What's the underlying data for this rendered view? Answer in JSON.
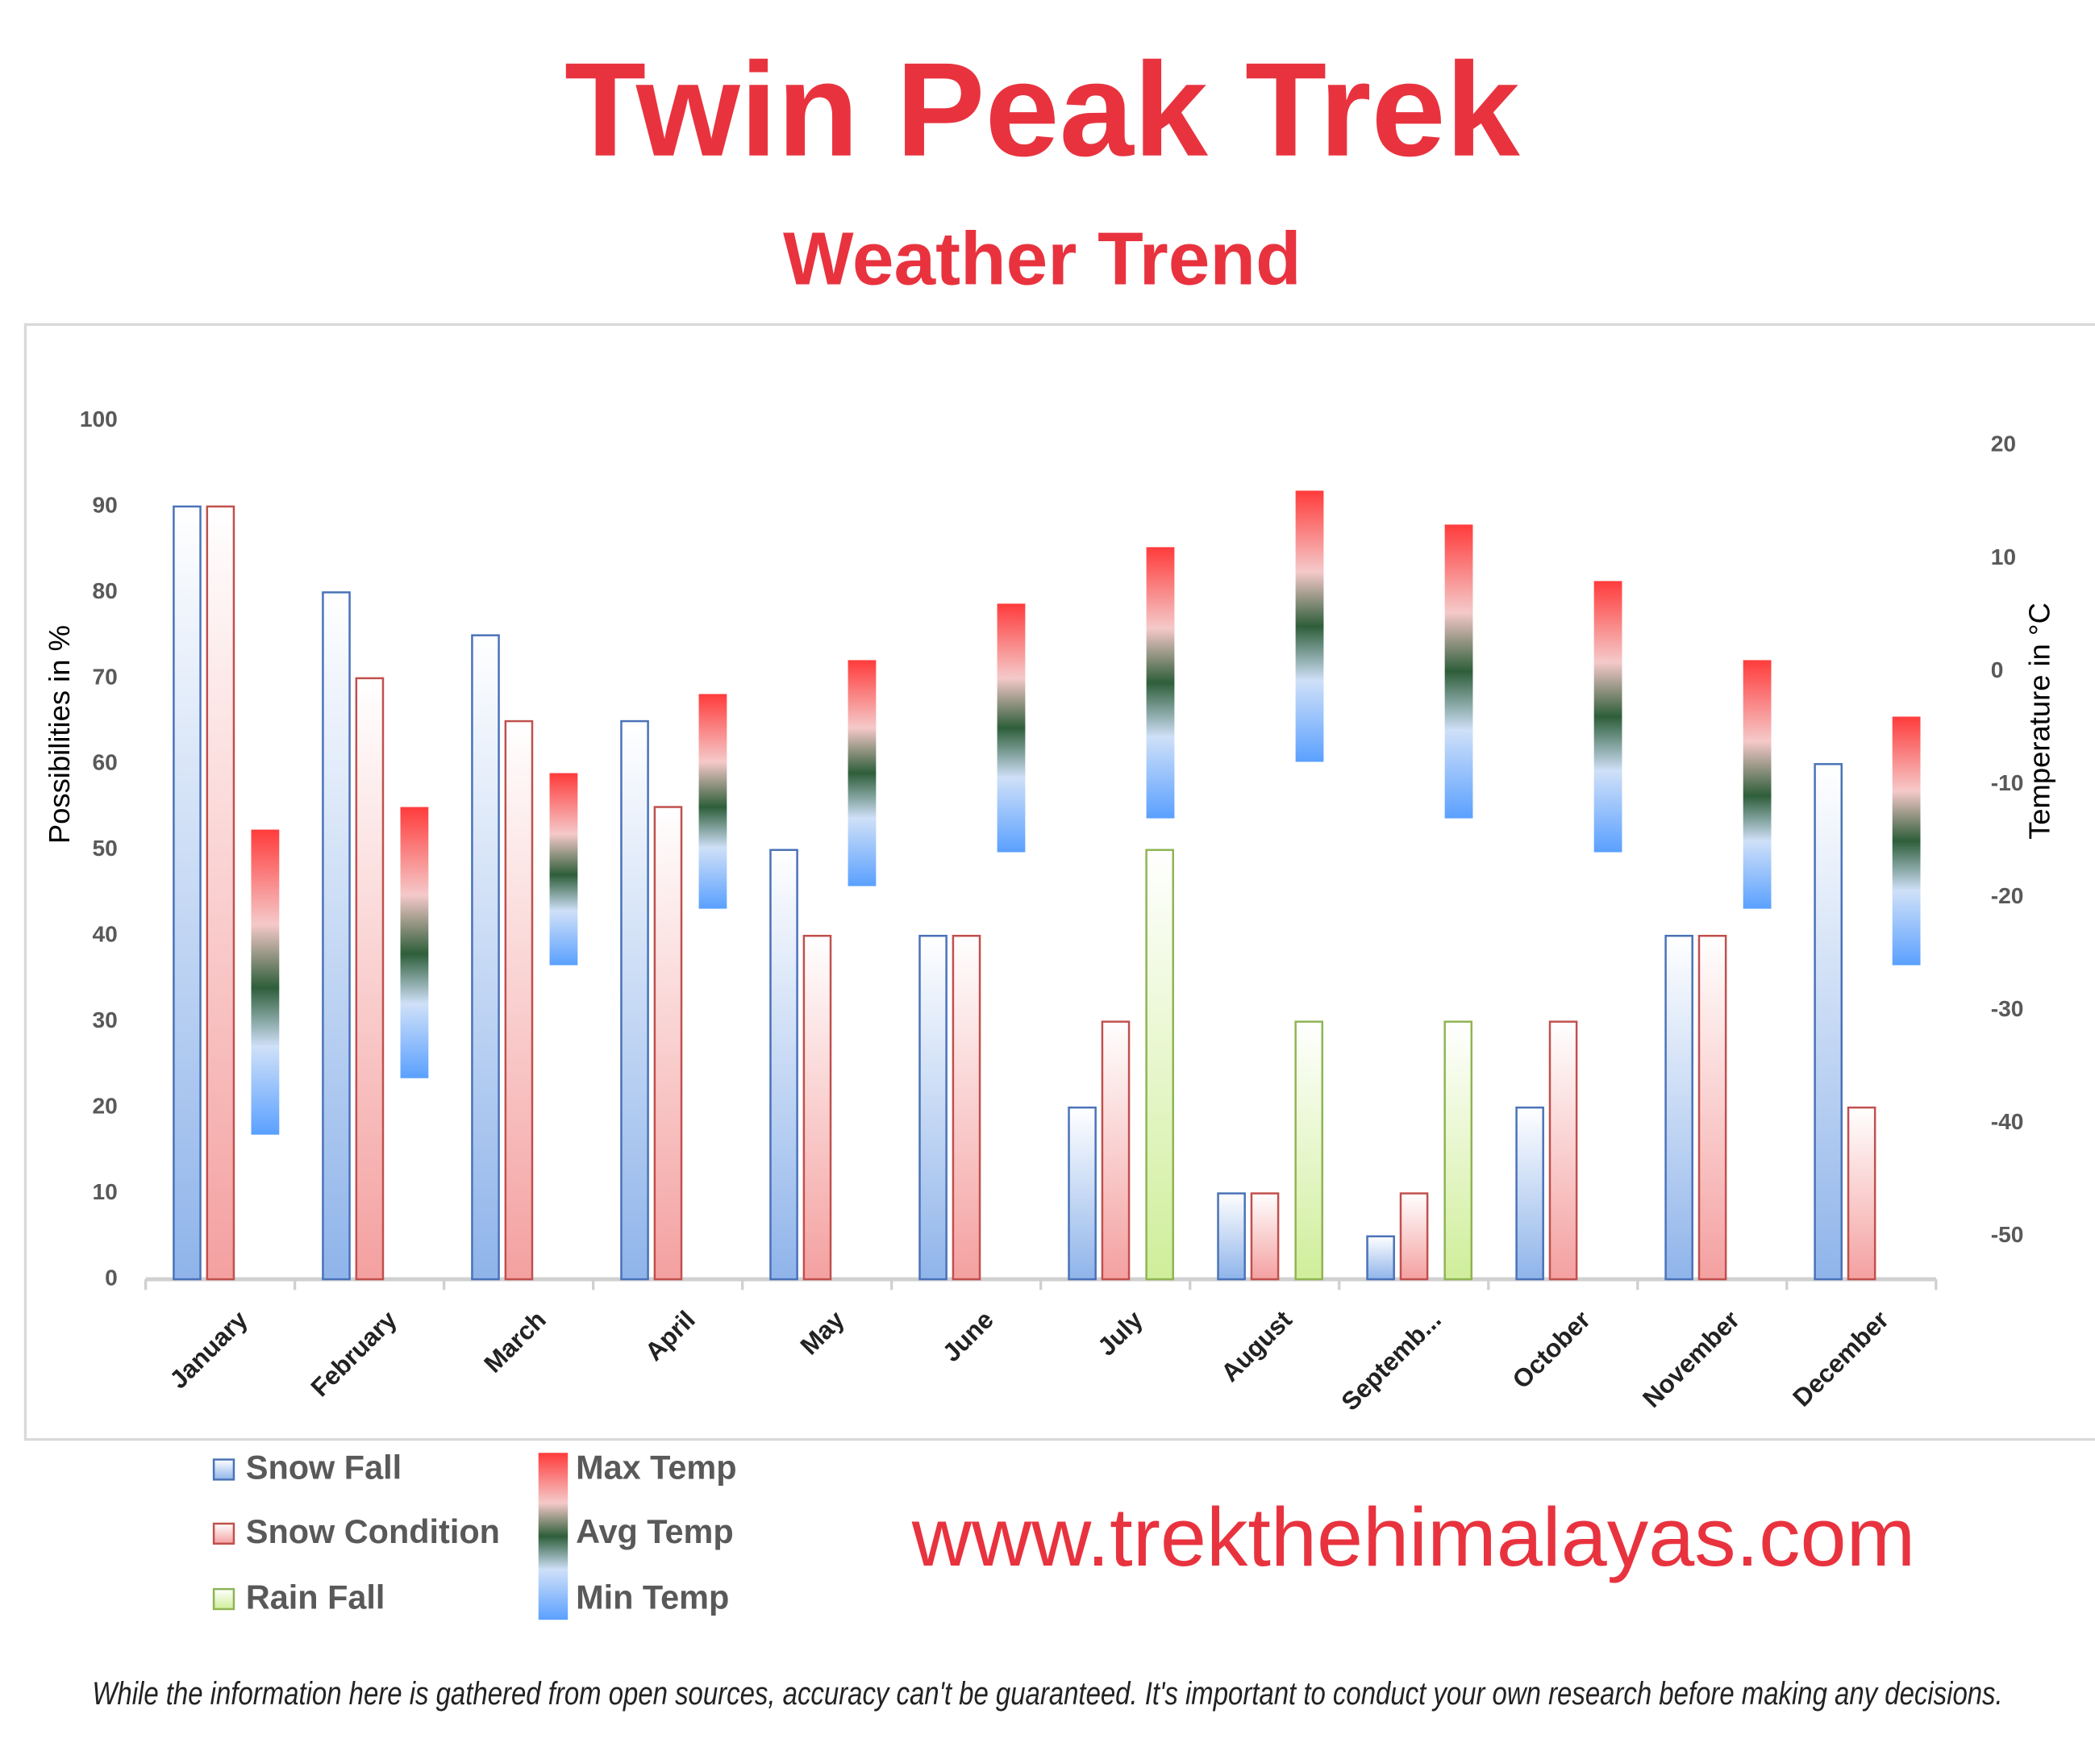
{
  "title": "Twin Peak Trek",
  "subtitle": "Weather Trend",
  "chart_data": {
    "type": "bar",
    "categories": [
      "January",
      "February",
      "March",
      "April",
      "May",
      "June",
      "July",
      "August",
      "Septemb...",
      "October",
      "November",
      "December"
    ],
    "ylabel": "Possibilities in %",
    "y2label": "Temperature in °C",
    "ylim": [
      0,
      100
    ],
    "yticks": [
      0,
      10,
      20,
      30,
      40,
      50,
      60,
      70,
      80,
      90,
      100
    ],
    "y2lim": [
      -53.8,
      22.2
    ],
    "y2ticks": [
      -50,
      -40,
      -30,
      -20,
      -10,
      0,
      10,
      20
    ],
    "grid": false,
    "series": [
      {
        "name": "Snow Fall",
        "color": "#8fb4ea",
        "values": [
          90,
          80,
          75,
          65,
          50,
          40,
          20,
          10,
          5,
          20,
          40,
          60
        ]
      },
      {
        "name": "Snow Condition",
        "color": "#f4a0a0",
        "values": [
          90,
          70,
          65,
          55,
          40,
          40,
          30,
          10,
          10,
          30,
          40,
          20
        ]
      },
      {
        "name": "Rain Fall",
        "color": "#cfee9a",
        "values": [
          null,
          null,
          null,
          null,
          null,
          null,
          50,
          30,
          30,
          null,
          null,
          null
        ]
      },
      {
        "name": "Max Temp",
        "color": "#ff3b3b",
        "axis": "y2",
        "values": [
          -14,
          -12,
          -9,
          -2,
          1,
          6,
          11,
          16,
          13,
          8,
          1,
          -4
        ]
      },
      {
        "name": "Avg Temp",
        "color": "#2e5e3a",
        "axis": "y2",
        "values": [
          -28,
          -25,
          -18,
          -12,
          -9,
          -5,
          -1,
          4,
          0,
          -4,
          -11,
          -15
        ]
      },
      {
        "name": "Min Temp",
        "color": "#5aa0ff",
        "axis": "y2",
        "values": [
          -41,
          -36,
          -26,
          -21,
          -19,
          -16,
          -13,
          -8,
          -13,
          -16,
          -21,
          -26
        ]
      }
    ]
  },
  "website": "www.trekthehimalayas.com",
  "disclaimer": "While the information here is gathered from open sources, accuracy can't be guaranteed. It's important to conduct your own research before making any decisions."
}
